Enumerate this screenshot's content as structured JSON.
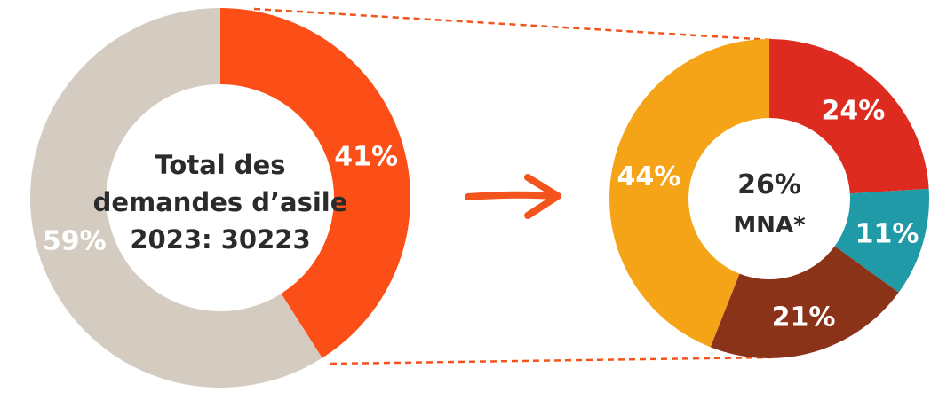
{
  "chart_data": [
    {
      "type": "pie",
      "center_text": [
        "Total des",
        "demandes d’asile",
        "2023: 30223"
      ],
      "slices": [
        {
          "label": "41%",
          "value": 41,
          "color": "#fc4f18"
        },
        {
          "label": "59%",
          "value": 59,
          "color": "#d4ccc1"
        }
      ]
    },
    {
      "type": "pie",
      "center_text": [
        "26%",
        "MNA*"
      ],
      "slices": [
        {
          "label": "24%",
          "value": 24,
          "color": "#dd2b20"
        },
        {
          "label": "11%",
          "value": 11,
          "color": "#1f9aa6"
        },
        {
          "label": "21%",
          "value": 21,
          "color": "#8a3319"
        },
        {
          "label": "44%",
          "value": 44,
          "color": "#f5a418"
        }
      ]
    }
  ],
  "colors": {
    "connector": "#f2541c",
    "arrow": "#f2541c"
  },
  "icons": {
    "arrow": "arrow-right-icon"
  }
}
